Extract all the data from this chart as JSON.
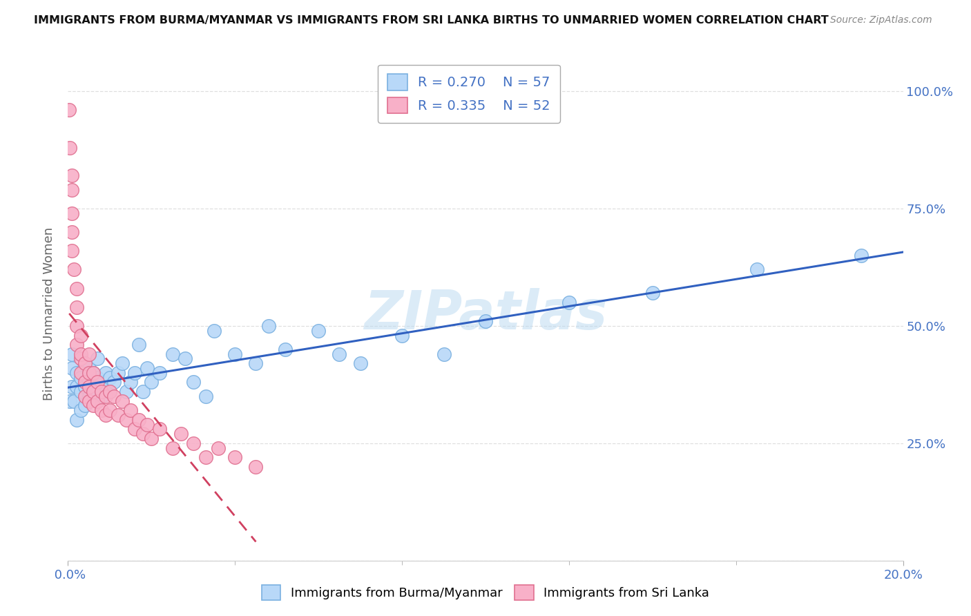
{
  "title": "IMMIGRANTS FROM BURMA/MYANMAR VS IMMIGRANTS FROM SRI LANKA BIRTHS TO UNMARRIED WOMEN CORRELATION CHART",
  "source": "Source: ZipAtlas.com",
  "ylabel": "Births to Unmarried Women",
  "watermark": "ZIPatlas",
  "legend_r1": "R = 0.270",
  "legend_n1": "N = 57",
  "legend_r2": "R = 0.335",
  "legend_n2": "N = 52",
  "color_burma": "#b8d8f8",
  "color_burma_edge": "#7ab0e0",
  "color_srilanka": "#f8b0c8",
  "color_srilanka_edge": "#e07090",
  "color_line_burma": "#3060c0",
  "color_line_srilanka": "#d04060",
  "grid_color": "#d8d8d8",
  "burma_x": [
    0.0005,
    0.001,
    0.001,
    0.001,
    0.0015,
    0.002,
    0.002,
    0.002,
    0.003,
    0.003,
    0.003,
    0.004,
    0.004,
    0.005,
    0.005,
    0.005,
    0.006,
    0.006,
    0.007,
    0.007,
    0.007,
    0.008,
    0.008,
    0.009,
    0.009,
    0.01,
    0.01,
    0.011,
    0.012,
    0.013,
    0.014,
    0.015,
    0.016,
    0.017,
    0.018,
    0.019,
    0.02,
    0.022,
    0.025,
    0.028,
    0.03,
    0.033,
    0.035,
    0.04,
    0.045,
    0.048,
    0.052,
    0.06,
    0.065,
    0.07,
    0.08,
    0.09,
    0.1,
    0.12,
    0.14,
    0.165,
    0.19
  ],
  "burma_y": [
    0.34,
    0.37,
    0.41,
    0.44,
    0.34,
    0.3,
    0.37,
    0.4,
    0.32,
    0.36,
    0.39,
    0.33,
    0.37,
    0.35,
    0.38,
    0.41,
    0.37,
    0.4,
    0.36,
    0.39,
    0.43,
    0.35,
    0.38,
    0.37,
    0.4,
    0.36,
    0.39,
    0.38,
    0.4,
    0.42,
    0.36,
    0.38,
    0.4,
    0.46,
    0.36,
    0.41,
    0.38,
    0.4,
    0.44,
    0.43,
    0.38,
    0.35,
    0.49,
    0.44,
    0.42,
    0.5,
    0.45,
    0.49,
    0.44,
    0.42,
    0.48,
    0.44,
    0.51,
    0.55,
    0.57,
    0.62,
    0.65
  ],
  "srilanka_x": [
    0.0003,
    0.0005,
    0.001,
    0.001,
    0.001,
    0.001,
    0.001,
    0.0015,
    0.002,
    0.002,
    0.002,
    0.002,
    0.003,
    0.003,
    0.003,
    0.003,
    0.004,
    0.004,
    0.004,
    0.005,
    0.005,
    0.005,
    0.005,
    0.006,
    0.006,
    0.006,
    0.007,
    0.007,
    0.008,
    0.008,
    0.009,
    0.009,
    0.01,
    0.01,
    0.011,
    0.012,
    0.013,
    0.014,
    0.015,
    0.016,
    0.017,
    0.018,
    0.019,
    0.02,
    0.022,
    0.025,
    0.027,
    0.03,
    0.033,
    0.036,
    0.04,
    0.045
  ],
  "srilanka_y": [
    0.96,
    0.88,
    0.82,
    0.79,
    0.74,
    0.7,
    0.66,
    0.62,
    0.58,
    0.54,
    0.5,
    0.46,
    0.43,
    0.4,
    0.48,
    0.44,
    0.42,
    0.38,
    0.35,
    0.44,
    0.4,
    0.37,
    0.34,
    0.4,
    0.36,
    0.33,
    0.38,
    0.34,
    0.36,
    0.32,
    0.35,
    0.31,
    0.36,
    0.32,
    0.35,
    0.31,
    0.34,
    0.3,
    0.32,
    0.28,
    0.3,
    0.27,
    0.29,
    0.26,
    0.28,
    0.24,
    0.27,
    0.25,
    0.22,
    0.24,
    0.22,
    0.2
  ],
  "yticks": [
    0.0,
    0.25,
    0.5,
    0.75,
    1.0
  ],
  "ytick_labels": [
    "",
    "25.0%",
    "50.0%",
    "75.0%",
    "100.0%"
  ],
  "xmin": 0.0,
  "xmax": 0.2,
  "ymin": 0.0,
  "ymax": 1.05
}
